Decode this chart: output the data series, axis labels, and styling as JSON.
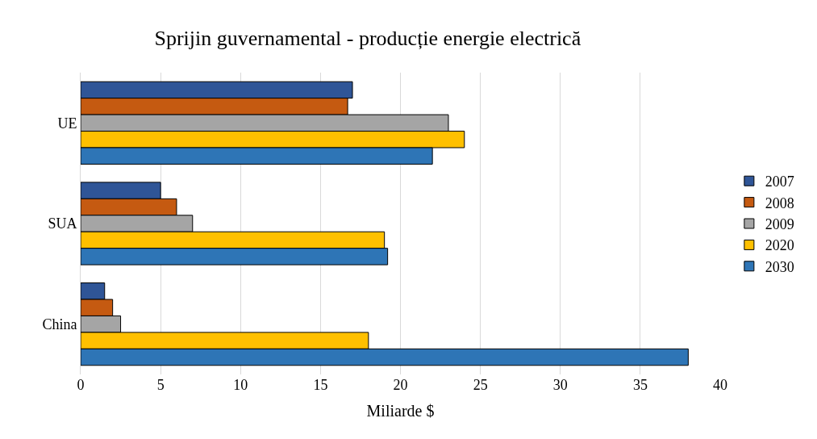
{
  "chart_data": {
    "type": "bar",
    "orientation": "horizontal",
    "title": "Sprijin guvernamental - producție energie electrică",
    "xlabel": "Miliarde $",
    "categories": [
      "UE",
      "SUA",
      "China"
    ],
    "series": [
      {
        "name": "2007",
        "color": "#2f5597",
        "values": [
          17,
          5,
          1.5
        ]
      },
      {
        "name": "2008",
        "color": "#c55a11",
        "values": [
          16.7,
          6,
          2
        ]
      },
      {
        "name": "2009",
        "color": "#a5a5a5",
        "values": [
          23,
          7,
          2.5
        ]
      },
      {
        "name": "2020",
        "color": "#ffc000",
        "values": [
          24,
          19,
          18
        ]
      },
      {
        "name": "2030",
        "color": "#2e75b6",
        "values": [
          22,
          19.2,
          38
        ]
      }
    ],
    "xlim": [
      0,
      40
    ],
    "xticks": [
      0,
      5,
      10,
      15,
      20,
      25,
      30,
      35,
      40
    ],
    "grid": "x",
    "legend": "right"
  }
}
